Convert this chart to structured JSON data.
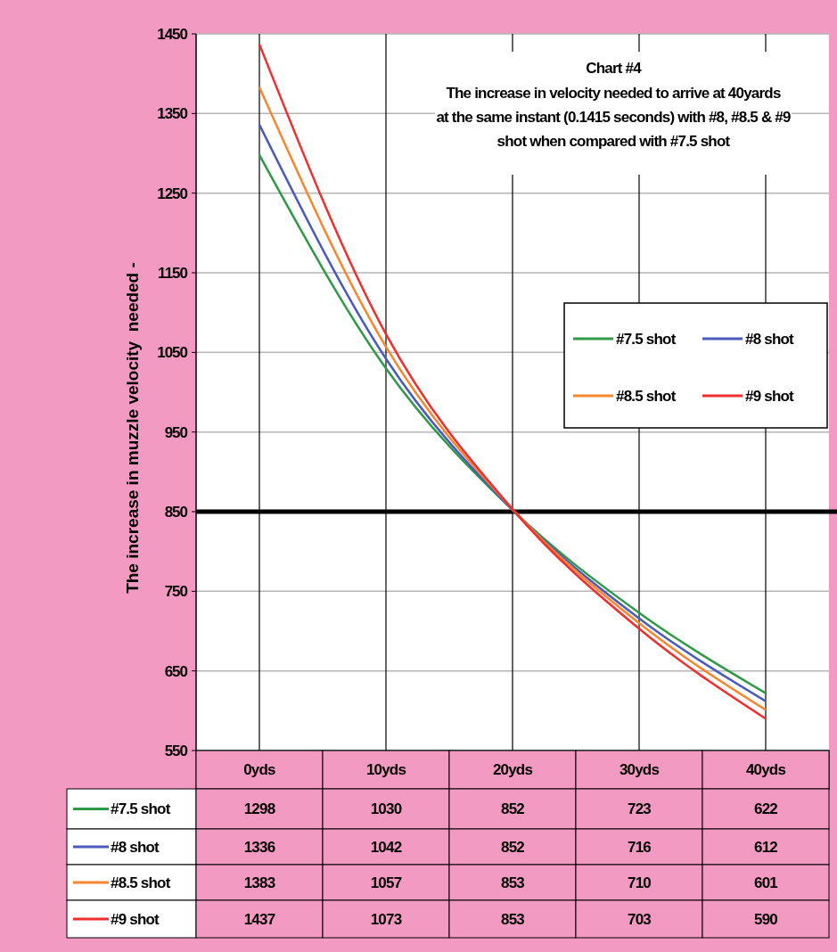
{
  "chart_data": {
    "type": "line",
    "title": "Chart #4",
    "subtitle": "The increase in velocity needed to arrive at 40yards\nat the same instant (0.1415 seconds) with #8, #8.5 & #9\nshot when compared with #7.5 shot",
    "ylabel": "The increase in muzzle velocity  needed -",
    "categories": [
      "0yds",
      "10yds",
      "20yds",
      "30yds",
      "40yds"
    ],
    "series": [
      {
        "name": "#7.5 shot",
        "color": "#2e9a47",
        "values": [
          1298,
          1030,
          852,
          723,
          622
        ]
      },
      {
        "name": "#8 shot",
        "color": "#4a5bbd",
        "values": [
          1336,
          1042,
          852,
          716,
          612
        ]
      },
      {
        "name": "#8.5 shot",
        "color": "#f7862f",
        "values": [
          1383,
          1057,
          853,
          710,
          601
        ]
      },
      {
        "name": "#9 shot",
        "color": "#ef2e2e",
        "values": [
          1437,
          1073,
          853,
          703,
          590
        ]
      }
    ],
    "ylim": [
      550,
      1450
    ],
    "yticks": [
      550,
      650,
      750,
      850,
      950,
      1050,
      1150,
      1250,
      1350,
      1450
    ],
    "grid": true,
    "legend": "right",
    "marker": "none",
    "line_style": "solid",
    "data_labels": true,
    "ref_lines": [
      {
        "axis": "y",
        "value": 850,
        "color": "#000000"
      }
    ]
  }
}
